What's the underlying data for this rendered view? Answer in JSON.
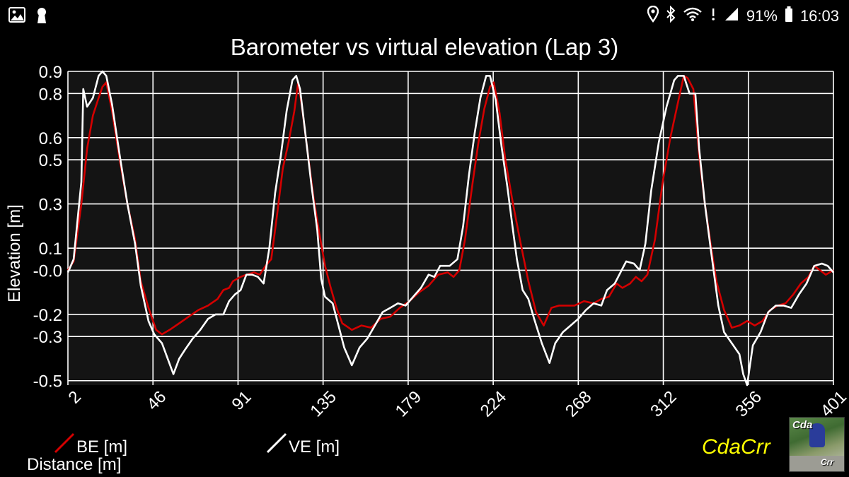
{
  "status_bar": {
    "left_icons": [
      "image-icon",
      "keyhole-icon"
    ],
    "right_icons": [
      "location-icon",
      "bluetooth-icon",
      "wifi-icon",
      "mute-icon",
      "signal-icon"
    ],
    "battery": "91%",
    "time": "16:03"
  },
  "brand": {
    "label": "CdaCrr",
    "logo_text_top": "Cda",
    "logo_text_bottom": "Crr"
  },
  "colors": {
    "background": "#000000",
    "plot_background": "#141414",
    "grid": "#ffffff",
    "be_series": "#d40000",
    "ve_series": "#ffffff",
    "brand": "#ffff00"
  },
  "chart_data": {
    "type": "line",
    "title": "Barometer vs virtual elevation (Lap 3)",
    "xlabel": "Distance [m]",
    "ylabel": "Elevation [m]",
    "xlim": [
      2,
      401
    ],
    "ylim": [
      -0.52,
      0.9
    ],
    "x_ticks": [
      "2",
      "46",
      "91",
      "135",
      "179",
      "224",
      "268",
      "312",
      "356",
      "401"
    ],
    "y_ticks": [
      {
        "label": "0.9",
        "value": 0.9
      },
      {
        "label": "0.8",
        "value": 0.8
      },
      {
        "label": "0.6",
        "value": 0.6
      },
      {
        "label": "0.5",
        "value": 0.5
      },
      {
        "label": "0.3",
        "value": 0.3
      },
      {
        "label": "0.1",
        "value": 0.1
      },
      {
        "label": "-0.0",
        "value": 0.0
      },
      {
        "label": "-0.2",
        "value": -0.2
      },
      {
        "label": "-0.3",
        "value": -0.3
      },
      {
        "label": "-0.5",
        "value": -0.5
      }
    ],
    "grid": true,
    "legend_position": "bottom-left",
    "series": [
      {
        "name": "BE [m]",
        "color": "#d40000",
        "points": [
          [
            2,
            0.0
          ],
          [
            5,
            0.04
          ],
          [
            9,
            0.3
          ],
          [
            12,
            0.55
          ],
          [
            15,
            0.7
          ],
          [
            18,
            0.78
          ],
          [
            20,
            0.83
          ],
          [
            22,
            0.85
          ],
          [
            25,
            0.72
          ],
          [
            29,
            0.5
          ],
          [
            33,
            0.3
          ],
          [
            37,
            0.14
          ],
          [
            40,
            -0.05
          ],
          [
            44,
            -0.17
          ],
          [
            48,
            -0.27
          ],
          [
            51,
            -0.29
          ],
          [
            55,
            -0.27
          ],
          [
            60,
            -0.24
          ],
          [
            65,
            -0.21
          ],
          [
            70,
            -0.18
          ],
          [
            75,
            -0.16
          ],
          [
            80,
            -0.13
          ],
          [
            83,
            -0.09
          ],
          [
            86,
            -0.08
          ],
          [
            88,
            -0.05
          ],
          [
            92,
            -0.03
          ],
          [
            95,
            -0.02
          ],
          [
            99,
            -0.01
          ],
          [
            102,
            -0.02
          ],
          [
            105,
            0.02
          ],
          [
            108,
            0.05
          ],
          [
            111,
            0.25
          ],
          [
            114,
            0.46
          ],
          [
            117,
            0.58
          ],
          [
            120,
            0.72
          ],
          [
            122,
            0.85
          ],
          [
            124,
            0.74
          ],
          [
            127,
            0.53
          ],
          [
            130,
            0.33
          ],
          [
            133,
            0.17
          ],
          [
            136,
            0.02
          ],
          [
            139,
            -0.08
          ],
          [
            142,
            -0.17
          ],
          [
            145,
            -0.24
          ],
          [
            150,
            -0.27
          ],
          [
            155,
            -0.25
          ],
          [
            160,
            -0.26
          ],
          [
            165,
            -0.22
          ],
          [
            170,
            -0.21
          ],
          [
            175,
            -0.17
          ],
          [
            180,
            -0.14
          ],
          [
            185,
            -0.1
          ],
          [
            190,
            -0.07
          ],
          [
            195,
            -0.02
          ],
          [
            200,
            -0.01
          ],
          [
            203,
            -0.03
          ],
          [
            206,
            0.0
          ],
          [
            209,
            0.14
          ],
          [
            213,
            0.4
          ],
          [
            216,
            0.58
          ],
          [
            219,
            0.73
          ],
          [
            222,
            0.83
          ],
          [
            224,
            0.85
          ],
          [
            227,
            0.71
          ],
          [
            230,
            0.5
          ],
          [
            234,
            0.3
          ],
          [
            238,
            0.12
          ],
          [
            242,
            -0.05
          ],
          [
            246,
            -0.19
          ],
          [
            250,
            -0.25
          ],
          [
            254,
            -0.17
          ],
          [
            258,
            -0.16
          ],
          [
            262,
            -0.16
          ],
          [
            266,
            -0.16
          ],
          [
            271,
            -0.14
          ],
          [
            276,
            -0.15
          ],
          [
            280,
            -0.13
          ],
          [
            284,
            -0.12
          ],
          [
            288,
            -0.06
          ],
          [
            291,
            -0.08
          ],
          [
            295,
            -0.06
          ],
          [
            298,
            -0.03
          ],
          [
            301,
            -0.05
          ],
          [
            304,
            -0.02
          ],
          [
            308,
            0.14
          ],
          [
            312,
            0.4
          ],
          [
            316,
            0.6
          ],
          [
            320,
            0.76
          ],
          [
            323,
            0.88
          ],
          [
            325,
            0.87
          ],
          [
            328,
            0.82
          ],
          [
            331,
            0.52
          ],
          [
            334,
            0.3
          ],
          [
            337,
            0.12
          ],
          [
            340,
            -0.05
          ],
          [
            344,
            -0.18
          ],
          [
            348,
            -0.26
          ],
          [
            352,
            -0.25
          ],
          [
            356,
            -0.23
          ],
          [
            360,
            -0.25
          ],
          [
            364,
            -0.23
          ],
          [
            368,
            -0.18
          ],
          [
            372,
            -0.16
          ],
          [
            376,
            -0.15
          ],
          [
            380,
            -0.11
          ],
          [
            384,
            -0.06
          ],
          [
            388,
            -0.03
          ],
          [
            391,
            0.02
          ],
          [
            394,
            0.0
          ],
          [
            397,
            -0.02
          ],
          [
            401,
            0.0
          ]
        ]
      },
      {
        "name": "VE [m]",
        "color": "#ffffff",
        "points": [
          [
            2,
            -0.01
          ],
          [
            5,
            0.05
          ],
          [
            9,
            0.4
          ],
          [
            10,
            0.82
          ],
          [
            12,
            0.74
          ],
          [
            15,
            0.78
          ],
          [
            18,
            0.88
          ],
          [
            20,
            0.9
          ],
          [
            22,
            0.88
          ],
          [
            25,
            0.75
          ],
          [
            29,
            0.52
          ],
          [
            33,
            0.3
          ],
          [
            37,
            0.12
          ],
          [
            40,
            -0.07
          ],
          [
            44,
            -0.23
          ],
          [
            47,
            -0.29
          ],
          [
            51,
            -0.33
          ],
          [
            54,
            -0.4
          ],
          [
            57,
            -0.47
          ],
          [
            60,
            -0.4
          ],
          [
            63,
            -0.36
          ],
          [
            67,
            -0.31
          ],
          [
            71,
            -0.27
          ],
          [
            75,
            -0.22
          ],
          [
            79,
            -0.2
          ],
          [
            83,
            -0.2
          ],
          [
            86,
            -0.14
          ],
          [
            89,
            -0.11
          ],
          [
            92,
            -0.09
          ],
          [
            95,
            -0.02
          ],
          [
            98,
            -0.02
          ],
          [
            101,
            -0.03
          ],
          [
            104,
            -0.06
          ],
          [
            107,
            0.1
          ],
          [
            110,
            0.35
          ],
          [
            113,
            0.52
          ],
          [
            116,
            0.72
          ],
          [
            119,
            0.86
          ],
          [
            121,
            0.88
          ],
          [
            123,
            0.82
          ],
          [
            126,
            0.6
          ],
          [
            129,
            0.38
          ],
          [
            132,
            0.18
          ],
          [
            134,
            -0.04
          ],
          [
            136,
            -0.12
          ],
          [
            140,
            -0.15
          ],
          [
            143,
            -0.25
          ],
          [
            146,
            -0.35
          ],
          [
            150,
            -0.43
          ],
          [
            154,
            -0.35
          ],
          [
            158,
            -0.31
          ],
          [
            162,
            -0.25
          ],
          [
            166,
            -0.19
          ],
          [
            170,
            -0.17
          ],
          [
            174,
            -0.15
          ],
          [
            178,
            -0.16
          ],
          [
            182,
            -0.12
          ],
          [
            186,
            -0.08
          ],
          [
            190,
            -0.02
          ],
          [
            193,
            -0.03
          ],
          [
            196,
            0.02
          ],
          [
            201,
            0.02
          ],
          [
            205,
            0.05
          ],
          [
            208,
            0.2
          ],
          [
            211,
            0.43
          ],
          [
            214,
            0.62
          ],
          [
            217,
            0.78
          ],
          [
            220,
            0.88
          ],
          [
            222,
            0.88
          ],
          [
            225,
            0.77
          ],
          [
            228,
            0.56
          ],
          [
            231,
            0.38
          ],
          [
            234,
            0.18
          ],
          [
            236,
            0.05
          ],
          [
            239,
            -0.09
          ],
          [
            242,
            -0.13
          ],
          [
            245,
            -0.22
          ],
          [
            249,
            -0.33
          ],
          [
            253,
            -0.42
          ],
          [
            256,
            -0.33
          ],
          [
            260,
            -0.28
          ],
          [
            264,
            -0.25
          ],
          [
            268,
            -0.22
          ],
          [
            272,
            -0.18
          ],
          [
            276,
            -0.15
          ],
          [
            280,
            -0.16
          ],
          [
            283,
            -0.09
          ],
          [
            287,
            -0.06
          ],
          [
            290,
            -0.01
          ],
          [
            293,
            0.04
          ],
          [
            297,
            0.03
          ],
          [
            300,
            0.0
          ],
          [
            303,
            0.12
          ],
          [
            306,
            0.36
          ],
          [
            310,
            0.58
          ],
          [
            314,
            0.74
          ],
          [
            318,
            0.86
          ],
          [
            320,
            0.88
          ],
          [
            323,
            0.88
          ],
          [
            326,
            0.8
          ],
          [
            329,
            0.8
          ],
          [
            331,
            0.55
          ],
          [
            334,
            0.3
          ],
          [
            337,
            0.1
          ],
          [
            341,
            -0.16
          ],
          [
            344,
            -0.28
          ],
          [
            348,
            -0.33
          ],
          [
            352,
            -0.38
          ],
          [
            354,
            -0.47
          ],
          [
            356,
            -0.52
          ],
          [
            359,
            -0.34
          ],
          [
            363,
            -0.28
          ],
          [
            367,
            -0.19
          ],
          [
            371,
            -0.16
          ],
          [
            375,
            -0.16
          ],
          [
            379,
            -0.17
          ],
          [
            383,
            -0.11
          ],
          [
            387,
            -0.06
          ],
          [
            391,
            0.02
          ],
          [
            395,
            0.03
          ],
          [
            398,
            0.02
          ],
          [
            401,
            -0.01
          ]
        ]
      }
    ]
  }
}
